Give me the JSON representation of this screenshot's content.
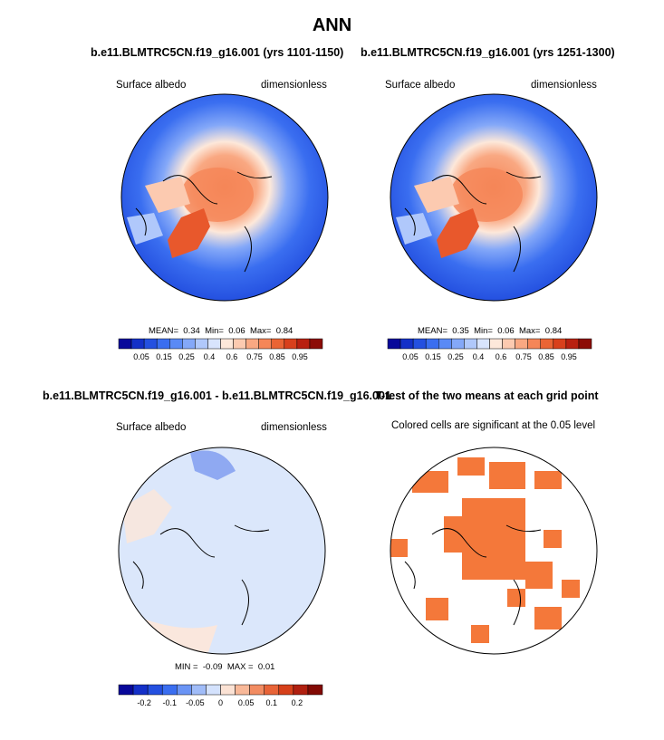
{
  "figure": {
    "title": "ANN",
    "lbar_colors": [
      "#08089a",
      "#1430c8",
      "#2450e0",
      "#3a6ef0",
      "#5a8af5",
      "#84a8f8",
      "#b0c8fb",
      "#d8e4fd",
      "#fde8da",
      "#fccab0",
      "#f9a882",
      "#f58658",
      "#ea6434",
      "#d8401c",
      "#b82010",
      "#8c0c06"
    ],
    "dbar_colors": [
      "#08089a",
      "#1430c8",
      "#2450e0",
      "#3a6ef0",
      "#6a94f5",
      "#a0bcf8",
      "#d4e2fd",
      "#fbe2d4",
      "#f8b898",
      "#f28c62",
      "#e86438",
      "#d6401a",
      "#b02010",
      "#820a04"
    ],
    "sig_color": "#f4783a"
  },
  "panels": {
    "p1": {
      "title": "b.e11.BLMTRC5CN.f19_g16.001 (yrs 1101-1150)",
      "left": "Surface albedo",
      "right": "dimensionless",
      "mean_label": "MEAN=",
      "mean_value": "0.34",
      "min_label": "Min=",
      "min_value": "0.06",
      "max_label": "Max=",
      "max_value": "0.84"
    },
    "p2": {
      "title": "b.e11.BLMTRC5CN.f19_g16.001 (yrs 1251-1300)",
      "left": "Surface albedo",
      "right": "dimensionless",
      "mean_label": "MEAN=",
      "mean_value": "0.35",
      "min_label": "Min=",
      "min_value": "0.06",
      "max_label": "Max=",
      "max_value": "0.84"
    },
    "p3": {
      "title": "b.e11.BLMTRC5CN.f19_g16.001 - b.e11.BLMTRC5CN.f19_g16.001",
      "left": "Surface albedo",
      "right": "dimensionless",
      "min_label": "MIN =",
      "min_value": "-0.09",
      "max_label": "MAX =",
      "max_value": "0.01"
    },
    "p4": {
      "title": "T-test of the two means at each grid point",
      "note": "Colored cells are significant at the 0.05 level"
    }
  },
  "chart_data": [
    {
      "type": "heatmap",
      "projection": "north-polar-stereographic",
      "title": "b.e11.BLMTRC5CN.f19_g16.001 (yrs 1101-1150)",
      "variable": "Surface albedo",
      "units": "dimensionless",
      "mean": 0.34,
      "min": 0.06,
      "max": 0.84,
      "colorbar_ticks": [
        "0.05",
        "0.15",
        "0.25",
        "0.4",
        "0.6",
        "0.75",
        "0.85",
        "0.95"
      ]
    },
    {
      "type": "heatmap",
      "projection": "north-polar-stereographic",
      "title": "b.e11.BLMTRC5CN.f19_g16.001 (yrs 1251-1300)",
      "variable": "Surface albedo",
      "units": "dimensionless",
      "mean": 0.35,
      "min": 0.06,
      "max": 0.84,
      "colorbar_ticks": [
        "0.05",
        "0.15",
        "0.25",
        "0.4",
        "0.6",
        "0.75",
        "0.85",
        "0.95"
      ]
    },
    {
      "type": "heatmap",
      "projection": "north-polar-stereographic",
      "title": "b.e11.BLMTRC5CN.f19_g16.001 - b.e11.BLMTRC5CN.f19_g16.001",
      "variable": "Surface albedo",
      "units": "dimensionless",
      "min": -0.09,
      "max": 0.01,
      "colorbar_ticks": [
        "-0.2",
        "-0.1",
        "-0.05",
        "0",
        "0.05",
        "0.1",
        "0.2"
      ]
    },
    {
      "type": "heatmap",
      "projection": "north-polar-stereographic",
      "title": "T-test of the two means at each grid point",
      "annotation": "Colored cells are significant at the 0.05 level"
    }
  ]
}
